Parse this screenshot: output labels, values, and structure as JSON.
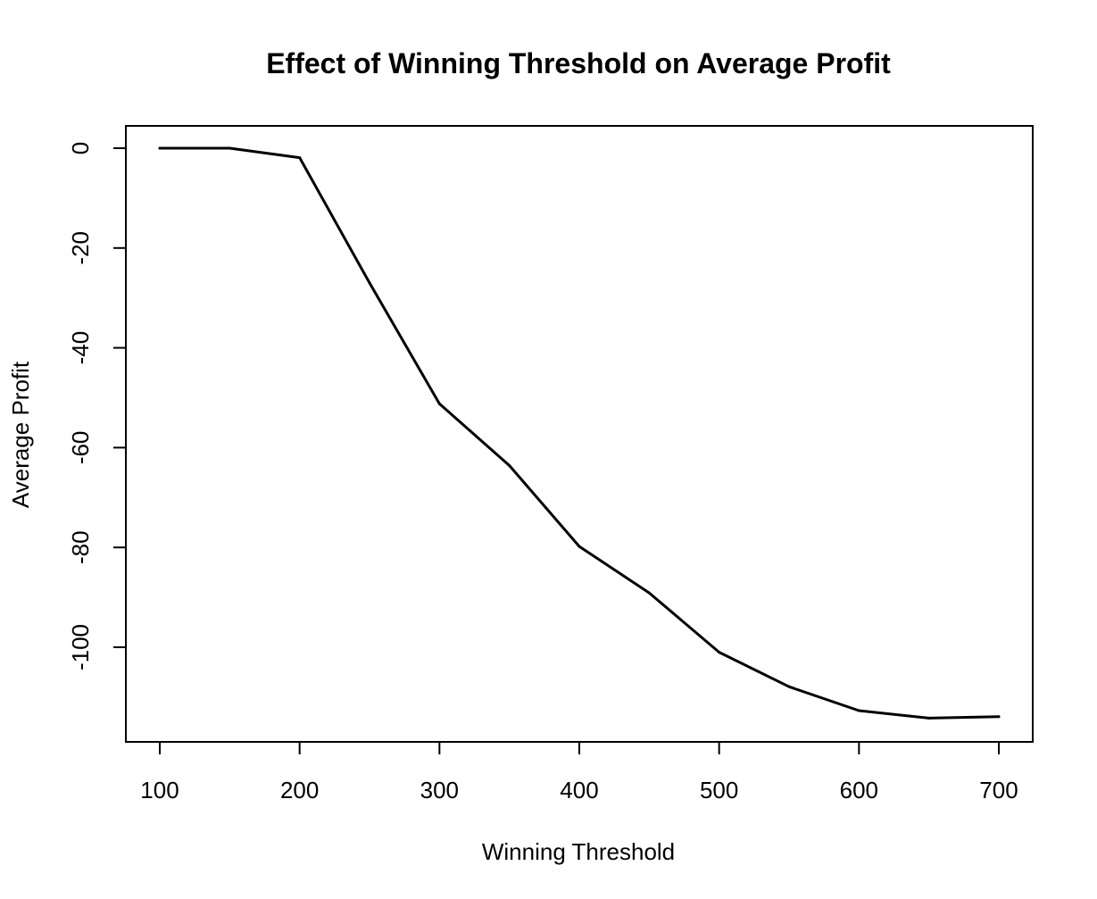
{
  "chart_data": {
    "type": "line",
    "title": "Effect of Winning Threshold on Average Profit",
    "xlabel": "Winning Threshold",
    "ylabel": "Average Profit",
    "xlim": [
      100,
      700
    ],
    "ylim": [
      -115,
      0
    ],
    "x_ticks": [
      100,
      200,
      300,
      400,
      500,
      600,
      700
    ],
    "y_ticks": [
      0,
      -20,
      -40,
      -60,
      -80,
      -100
    ],
    "grid": false,
    "legend": "none",
    "series": [
      {
        "x": [
          100,
          150,
          200,
          250,
          300,
          350,
          400,
          450,
          500,
          550,
          600,
          650,
          700
        ],
        "values": [
          0,
          0,
          -1.9,
          -27,
          -51.2,
          -63.6,
          -79.8,
          -89.1,
          -101,
          -107.9,
          -112.7,
          -114.2,
          -113.9
        ],
        "color": "#000000"
      }
    ]
  }
}
